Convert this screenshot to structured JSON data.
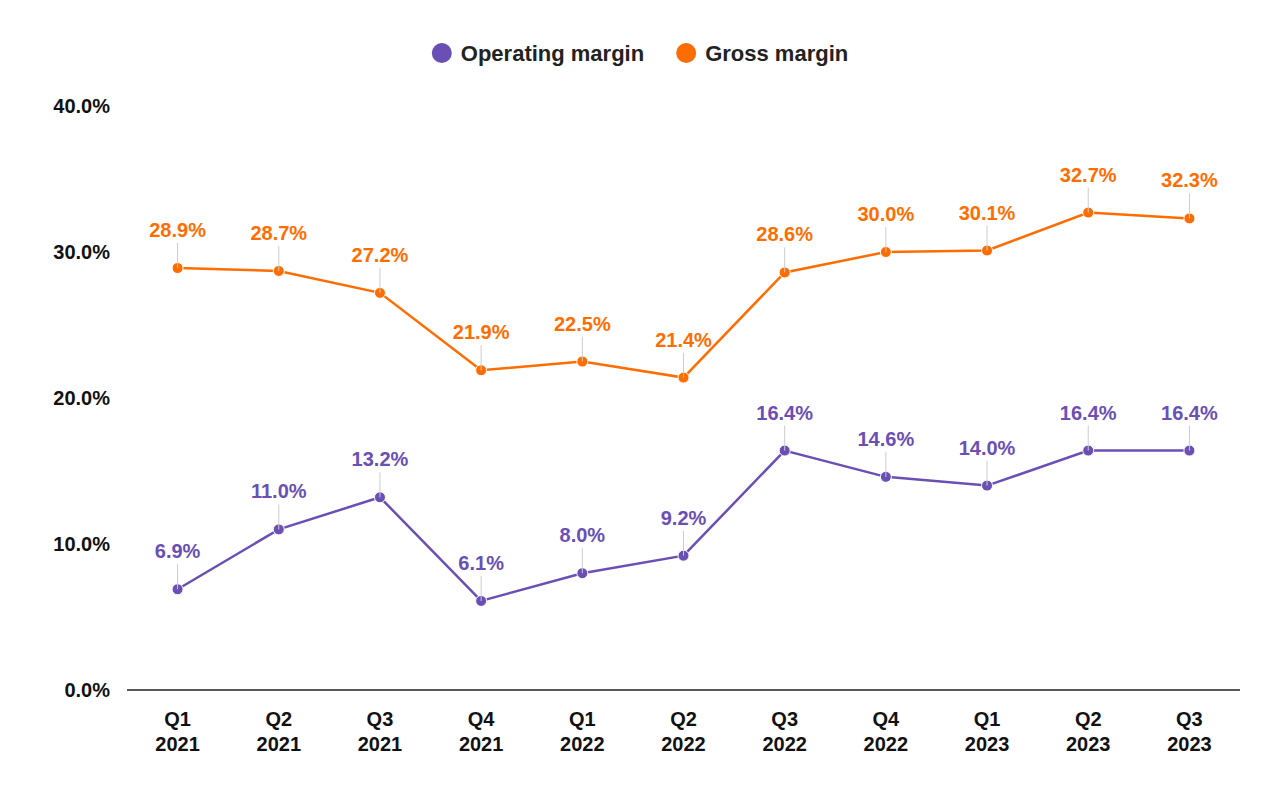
{
  "chart_data": {
    "type": "line",
    "categories": [
      "Q1 2021",
      "Q2 2021",
      "Q3 2021",
      "Q4 2021",
      "Q1 2022",
      "Q2 2022",
      "Q3 2022",
      "Q4 2022",
      "Q1 2023",
      "Q2 2023",
      "Q3 2023"
    ],
    "series": [
      {
        "name": "Operating margin",
        "color": "#6a4fb5",
        "marker": "circle",
        "values": [
          6.9,
          11.0,
          13.2,
          6.1,
          8.0,
          9.2,
          16.4,
          14.6,
          14.0,
          16.4,
          16.4
        ],
        "value_labels": [
          "6.9%",
          "11.0%",
          "13.2%",
          "6.1%",
          "8.0%",
          "9.2%",
          "16.4%",
          "14.6%",
          "14.0%",
          "16.4%",
          "16.4%"
        ]
      },
      {
        "name": "Gross margin",
        "color": "#ff6d01",
        "marker": "circle",
        "values": [
          28.9,
          28.7,
          27.2,
          21.9,
          22.5,
          21.4,
          28.6,
          30.0,
          30.1,
          32.7,
          32.3
        ],
        "value_labels": [
          "28.9%",
          "28.7%",
          "27.2%",
          "21.9%",
          "22.5%",
          "21.4%",
          "28.6%",
          "30.0%",
          "30.1%",
          "32.7%",
          "32.3%"
        ]
      }
    ],
    "ylim": [
      0,
      40
    ],
    "yticks": [
      {
        "value": 0,
        "label": "0.0%"
      },
      {
        "value": 10,
        "label": "10.0%"
      },
      {
        "value": 20,
        "label": "20.0%"
      },
      {
        "value": 30,
        "label": "30.0%"
      },
      {
        "value": 40,
        "label": "40.0%"
      }
    ],
    "grid": false,
    "legend": "top",
    "data_labels": true
  }
}
